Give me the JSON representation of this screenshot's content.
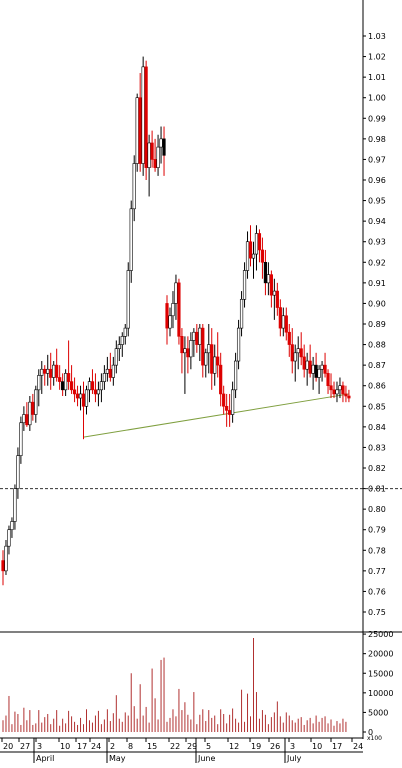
{
  "colors": {
    "up": "#ffffff",
    "down": "#dd0000",
    "down_alt": "#000000",
    "trendline": "#7f9f3f",
    "volume_bar": "#b03030",
    "text": "#000000",
    "reference_line": "#333333"
  },
  "chart_data": [
    {
      "type": "candlestick",
      "title": "",
      "ylabel": "",
      "ylim": [
        0.745,
        1.04
      ],
      "y_ticks": [
        "1.03",
        "1.02",
        "1.01",
        "1.00",
        "0.99",
        "0.98",
        "0.97",
        "0.96",
        "0.95",
        "0.94",
        "0.93",
        "0.92",
        "0.91",
        "0.90",
        "0.89",
        "0.88",
        "0.87",
        "0.86",
        "0.85",
        "0.84",
        "0.83",
        "0.82",
        "0.81",
        "0.80",
        "0.79",
        "0.78",
        "0.77",
        "0.76",
        "0.75"
      ],
      "x_tick_labels": [
        "20",
        "27",
        "3",
        "10",
        "17",
        "24",
        "2",
        "8",
        "15",
        "22",
        "29",
        "5",
        "12",
        "19",
        "26",
        "3",
        "10",
        "17",
        "24"
      ],
      "month_labels": [
        "April",
        "May",
        "June",
        "July"
      ],
      "reference_line": 0.81,
      "trendline": {
        "from_index": 27,
        "from_value": 0.835,
        "to_index": 116,
        "to_value": 0.856
      },
      "candles": [
        [
          0.775,
          0.78,
          0.763,
          0.77
        ],
        [
          0.77,
          0.785,
          0.768,
          0.782
        ],
        [
          0.782,
          0.792,
          0.778,
          0.79
        ],
        [
          0.79,
          0.796,
          0.786,
          0.794
        ],
        [
          0.794,
          0.812,
          0.79,
          0.81
        ],
        [
          0.81,
          0.83,
          0.805,
          0.826
        ],
        [
          0.826,
          0.845,
          0.822,
          0.842
        ],
        [
          0.842,
          0.85,
          0.838,
          0.846
        ],
        [
          0.846,
          0.852,
          0.84,
          0.841
        ],
        [
          0.841,
          0.855,
          0.838,
          0.852
        ],
        [
          0.852,
          0.856,
          0.843,
          0.846
        ],
        [
          0.846,
          0.86,
          0.842,
          0.858
        ],
        [
          0.858,
          0.868,
          0.85,
          0.865
        ],
        [
          0.865,
          0.872,
          0.856,
          0.868
        ],
        [
          0.868,
          0.87,
          0.86,
          0.866
        ],
        [
          0.866,
          0.875,
          0.86,
          0.868
        ],
        [
          0.868,
          0.876,
          0.858,
          0.864
        ],
        [
          0.864,
          0.872,
          0.86,
          0.87
        ],
        [
          0.87,
          0.878,
          0.862,
          0.864
        ],
        [
          0.864,
          0.87,
          0.858,
          0.862
        ],
        [
          0.862,
          0.866,
          0.855,
          0.858
        ],
        [
          0.858,
          0.868,
          0.855,
          0.866
        ],
        [
          0.866,
          0.882,
          0.858,
          0.862
        ],
        [
          0.862,
          0.87,
          0.856,
          0.858
        ],
        [
          0.858,
          0.864,
          0.852,
          0.856
        ],
        [
          0.856,
          0.86,
          0.85,
          0.854
        ],
        [
          0.854,
          0.86,
          0.848,
          0.856
        ],
        [
          0.856,
          0.862,
          0.834,
          0.85
        ],
        [
          0.85,
          0.86,
          0.846,
          0.858
        ],
        [
          0.858,
          0.864,
          0.852,
          0.862
        ],
        [
          0.862,
          0.868,
          0.856,
          0.858
        ],
        [
          0.858,
          0.866,
          0.852,
          0.856
        ],
        [
          0.856,
          0.862,
          0.85,
          0.858
        ],
        [
          0.858,
          0.866,
          0.852,
          0.862
        ],
        [
          0.862,
          0.87,
          0.858,
          0.866
        ],
        [
          0.866,
          0.874,
          0.862,
          0.868
        ],
        [
          0.868,
          0.876,
          0.862,
          0.864
        ],
        [
          0.864,
          0.874,
          0.86,
          0.87
        ],
        [
          0.87,
          0.882,
          0.866,
          0.878
        ],
        [
          0.878,
          0.884,
          0.872,
          0.88
        ],
        [
          0.88,
          0.886,
          0.874,
          0.884
        ],
        [
          0.884,
          0.89,
          0.88,
          0.888
        ],
        [
          0.888,
          0.92,
          0.884,
          0.916
        ],
        [
          0.916,
          0.95,
          0.91,
          0.946
        ],
        [
          0.946,
          0.972,
          0.94,
          0.968
        ],
        [
          0.968,
          1.002,
          0.964,
          1.0
        ],
        [
          1.0,
          1.012,
          0.964,
          0.968
        ],
        [
          0.968,
          1.02,
          0.962,
          1.015
        ],
        [
          1.015,
          1.018,
          0.96,
          0.966
        ],
        [
          0.966,
          0.982,
          0.952,
          0.978
        ],
        [
          0.978,
          0.984,
          0.966,
          0.97
        ],
        [
          0.97,
          0.98,
          0.964,
          0.966
        ],
        [
          0.966,
          0.982,
          0.962,
          0.976
        ],
        [
          0.976,
          0.986,
          0.968,
          0.98
        ],
        [
          0.98,
          0.986,
          0.962,
          0.972
        ],
        [
          0.9,
          0.904,
          0.88,
          0.888
        ],
        [
          0.888,
          0.898,
          0.884,
          0.894
        ],
        [
          0.894,
          0.906,
          0.888,
          0.9
        ],
        [
          0.9,
          0.914,
          0.892,
          0.91
        ],
        [
          0.91,
          0.912,
          0.88,
          0.884
        ],
        [
          0.884,
          0.888,
          0.866,
          0.876
        ],
        [
          0.876,
          0.884,
          0.856,
          0.878
        ],
        [
          0.878,
          0.884,
          0.866,
          0.874
        ],
        [
          0.874,
          0.886,
          0.868,
          0.882
        ],
        [
          0.882,
          0.888,
          0.874,
          0.886
        ],
        [
          0.886,
          0.89,
          0.876,
          0.88
        ],
        [
          0.88,
          0.89,
          0.872,
          0.888
        ],
        [
          0.888,
          0.89,
          0.864,
          0.87
        ],
        [
          0.87,
          0.878,
          0.864,
          0.876
        ],
        [
          0.876,
          0.89,
          0.866,
          0.88
        ],
        [
          0.88,
          0.888,
          0.858,
          0.866
        ],
        [
          0.866,
          0.88,
          0.86,
          0.874
        ],
        [
          0.874,
          0.886,
          0.864,
          0.87
        ],
        [
          0.87,
          0.876,
          0.85,
          0.856
        ],
        [
          0.856,
          0.86,
          0.846,
          0.85
        ],
        [
          0.85,
          0.856,
          0.84,
          0.848
        ],
        [
          0.848,
          0.856,
          0.84,
          0.846
        ],
        [
          0.846,
          0.862,
          0.842,
          0.858
        ],
        [
          0.858,
          0.876,
          0.854,
          0.872
        ],
        [
          0.872,
          0.892,
          0.868,
          0.888
        ],
        [
          0.888,
          0.906,
          0.884,
          0.902
        ],
        [
          0.902,
          0.92,
          0.898,
          0.916
        ],
        [
          0.916,
          0.935,
          0.912,
          0.93
        ],
        [
          0.93,
          0.938,
          0.918,
          0.922
        ],
        [
          0.922,
          0.93,
          0.912,
          0.924
        ],
        [
          0.924,
          0.938,
          0.916,
          0.934
        ],
        [
          0.934,
          0.936,
          0.92,
          0.926
        ],
        [
          0.926,
          0.932,
          0.912,
          0.92
        ],
        [
          0.92,
          0.926,
          0.904,
          0.91
        ],
        [
          0.91,
          0.92,
          0.904,
          0.914
        ],
        [
          0.914,
          0.916,
          0.898,
          0.904
        ],
        [
          0.904,
          0.912,
          0.892,
          0.906
        ],
        [
          0.906,
          0.91,
          0.894,
          0.898
        ],
        [
          0.898,
          0.902,
          0.884,
          0.888
        ],
        [
          0.888,
          0.898,
          0.884,
          0.894
        ],
        [
          0.894,
          0.898,
          0.882,
          0.886
        ],
        [
          0.886,
          0.89,
          0.874,
          0.88
        ],
        [
          0.88,
          0.888,
          0.866,
          0.872
        ],
        [
          0.872,
          0.88,
          0.862,
          0.876
        ],
        [
          0.876,
          0.884,
          0.868,
          0.878
        ],
        [
          0.878,
          0.886,
          0.87,
          0.874
        ],
        [
          0.874,
          0.88,
          0.864,
          0.868
        ],
        [
          0.868,
          0.876,
          0.86,
          0.872
        ],
        [
          0.872,
          0.88,
          0.864,
          0.866
        ],
        [
          0.866,
          0.874,
          0.858,
          0.87
        ],
        [
          0.87,
          0.876,
          0.862,
          0.864
        ],
        [
          0.864,
          0.87,
          0.856,
          0.868
        ],
        [
          0.868,
          0.872,
          0.862,
          0.87
        ],
        [
          0.87,
          0.876,
          0.864,
          0.866
        ],
        [
          0.866,
          0.868,
          0.856,
          0.86
        ],
        [
          0.86,
          0.866,
          0.854,
          0.858
        ],
        [
          0.858,
          0.862,
          0.854,
          0.856
        ],
        [
          0.856,
          0.862,
          0.852,
          0.858
        ],
        [
          0.858,
          0.864,
          0.854,
          0.86
        ],
        [
          0.86,
          0.862,
          0.852,
          0.856
        ],
        [
          0.856,
          0.86,
          0.852,
          0.855
        ],
        [
          0.855,
          0.858,
          0.852,
          0.854
        ]
      ]
    },
    {
      "type": "bar",
      "title": "",
      "ylim": [
        0,
        26000
      ],
      "y_ticks": [
        "25000",
        "20000",
        "15000",
        "10000",
        "5000",
        "0"
      ],
      "x_axis_label": "x100",
      "values": [
        3000,
        4200,
        9200,
        2000,
        5200,
        4600,
        1800,
        6200,
        3000,
        5600,
        1800,
        2200,
        5600,
        2400,
        3800,
        4600,
        2000,
        3400,
        5600,
        1600,
        3400,
        2200,
        5400,
        4000,
        2600,
        1800,
        3600,
        2000,
        5800,
        3000,
        2400,
        4200,
        5400,
        2000,
        3200,
        5800,
        2800,
        4800,
        9400,
        3400,
        2600,
        5000,
        4200,
        15000,
        6600,
        3400,
        12200,
        4200,
        6400,
        2400,
        16200,
        8600,
        3200,
        18400,
        19000,
        2600,
        3600,
        5800,
        4000,
        11000,
        5600,
        7600,
        4400,
        3200,
        10200,
        2000,
        4400,
        5800,
        2800,
        5600,
        3600,
        4200,
        2000,
        5800,
        4600,
        2200,
        4400,
        6000,
        3400,
        2400,
        10800,
        2600,
        9800,
        4000,
        24000,
        10200,
        3400,
        5600,
        4400,
        2000,
        3800,
        5000,
        7800,
        4000,
        2400,
        5000,
        4200,
        3000,
        2400,
        3400,
        3800,
        1800,
        3000,
        3600,
        2200,
        4200,
        2600,
        3600,
        4000,
        2200,
        3200,
        1600,
        2800,
        2200,
        3400,
        2600
      ]
    }
  ]
}
